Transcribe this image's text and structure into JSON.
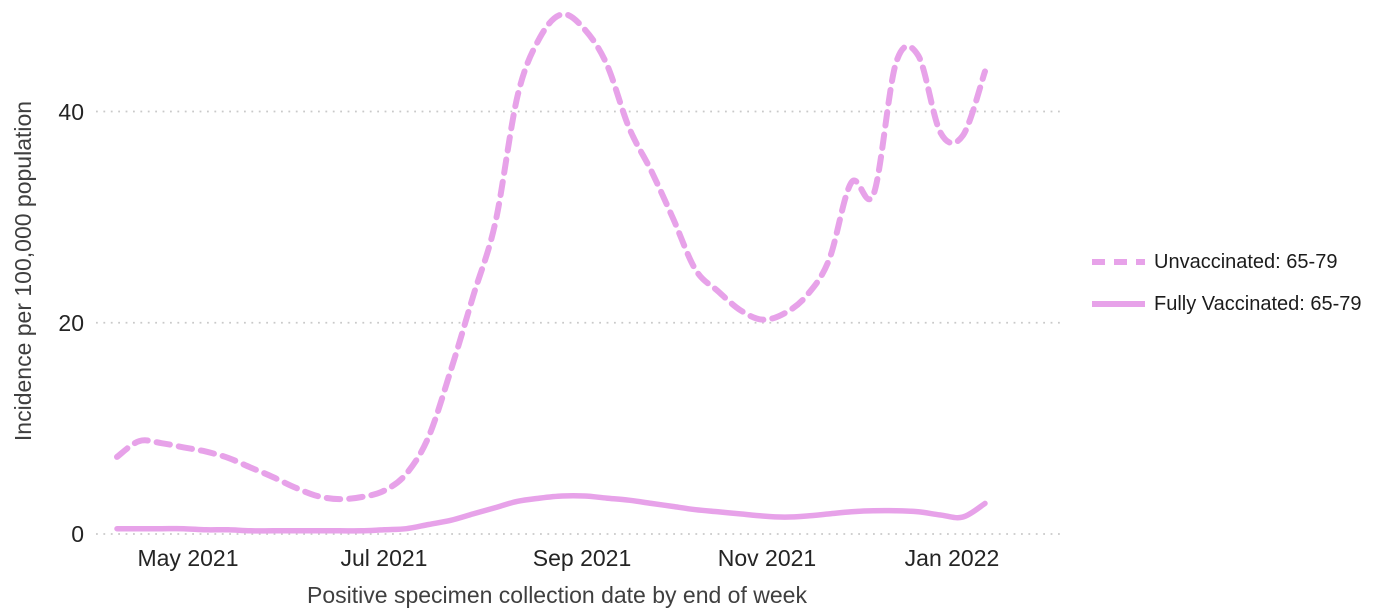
{
  "chart": {
    "y_axis_title": "Incidence per 100,000 population",
    "x_axis_title": "Positive specimen collection date by end of week",
    "y_tick_labels": [
      "0",
      "20",
      "40"
    ],
    "y_tick_values": [
      0,
      20,
      40
    ],
    "x_tick_labels": [
      "May 2021",
      "Jul 2021",
      "Sep 2021",
      "Nov 2021",
      "Jan 2022"
    ]
  },
  "legend": {
    "items": [
      {
        "label": "Unvaccinated: 65-79",
        "style": "dashed"
      },
      {
        "label": "Fully Vaccinated: 65-79",
        "style": "solid"
      }
    ]
  },
  "colors": {
    "series_line": "#e7a2e9",
    "gridline": "#c9c9c9",
    "tick_text": "#242424",
    "axis_title_text": "#3f3f3f",
    "legend_text": "#1c1c1c",
    "background": "#ffffff"
  },
  "chart_data": {
    "type": "line",
    "title": "",
    "xlabel": "Positive specimen collection date by end of week",
    "ylabel": "Incidence per 100,000 population",
    "ylim": [
      0,
      50
    ],
    "y_ticks": [
      0,
      20,
      40
    ],
    "grid": "dotted-horizontal",
    "legend_position": "right",
    "x_unit": "week_ending_date",
    "x": [
      "2021-04-10",
      "2021-04-17",
      "2021-04-24",
      "2021-05-01",
      "2021-05-08",
      "2021-05-15",
      "2021-05-22",
      "2021-05-29",
      "2021-06-05",
      "2021-06-12",
      "2021-06-19",
      "2021-06-26",
      "2021-07-03",
      "2021-07-10",
      "2021-07-17",
      "2021-07-24",
      "2021-07-31",
      "2021-08-07",
      "2021-08-14",
      "2021-08-21",
      "2021-08-28",
      "2021-09-04",
      "2021-09-11",
      "2021-09-18",
      "2021-09-25",
      "2021-10-02",
      "2021-10-09",
      "2021-10-16",
      "2021-10-23",
      "2021-10-30",
      "2021-11-06",
      "2021-11-13",
      "2021-11-20",
      "2021-11-27",
      "2021-12-04",
      "2021-12-11",
      "2021-12-18",
      "2021-12-25",
      "2022-01-01",
      "2022-01-08"
    ],
    "series": [
      {
        "name": "Unvaccinated: 65-79",
        "style": "dashed",
        "values": [
          7.3,
          8.8,
          8.6,
          8.2,
          7.8,
          7.2,
          6.3,
          5.4,
          4.4,
          3.6,
          3.3,
          3.5,
          4.1,
          5.7,
          9.2,
          15.5,
          22.5,
          29.5,
          41.5,
          47.0,
          49.2,
          47.8,
          44.5,
          38.5,
          34.4,
          29.8,
          25.0,
          23.0,
          21.2,
          20.3,
          20.9,
          22.6,
          26.0,
          33.3,
          32.2,
          44.6,
          45.3,
          38.0,
          37.7,
          43.8
        ]
      },
      {
        "name": "Fully Vaccinated: 65-79",
        "style": "solid",
        "values": [
          0.5,
          0.5,
          0.5,
          0.5,
          0.4,
          0.4,
          0.3,
          0.3,
          0.3,
          0.3,
          0.3,
          0.3,
          0.4,
          0.5,
          0.9,
          1.3,
          1.9,
          2.5,
          3.1,
          3.4,
          3.6,
          3.6,
          3.4,
          3.2,
          2.9,
          2.6,
          2.3,
          2.1,
          1.9,
          1.7,
          1.6,
          1.7,
          1.9,
          2.1,
          2.2,
          2.2,
          2.1,
          1.8,
          1.6,
          2.9
        ]
      }
    ]
  }
}
